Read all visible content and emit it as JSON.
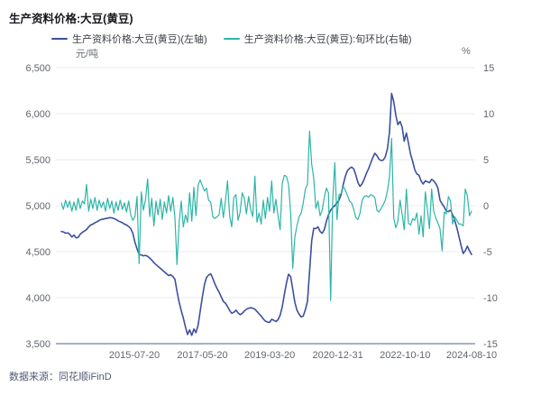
{
  "header": {
    "title": "生产资料价格:大豆(黄豆)"
  },
  "legend": [
    {
      "label": "生产资料价格:大豆(黄豆)(左轴)",
      "color": "#3d4f9d"
    },
    {
      "label": "生产资料价格:大豆(黄豆):旬环比(右轴)",
      "color": "#2db5a6"
    }
  ],
  "footer": {
    "source": "数据来源：同花顺iFinD"
  },
  "chart_data": {
    "type": "line",
    "title": "生产资料价格:大豆(黄豆)",
    "grid": true,
    "legend_position": "top",
    "left_axis": {
      "unit": "元/吨",
      "min": 3500,
      "max": 6500,
      "tick_labels": [
        "6,500",
        "6,000",
        "5,500",
        "5,000",
        "4,500",
        "4,000",
        "3,500"
      ]
    },
    "right_axis": {
      "unit": "%",
      "min": -15,
      "max": 15,
      "tick_labels": [
        "15",
        "10",
        "5",
        "0",
        "-5",
        "-10",
        "-15"
      ]
    },
    "x_axis": {
      "tick_labels": [
        "2015-07-20",
        "2017-05-20",
        "2019-03-20",
        "2020-12-31",
        "2022-10-10",
        "2024-08-10"
      ],
      "tick_pos": [
        0.178,
        0.344,
        0.508,
        0.674,
        0.838,
        1.0
      ]
    },
    "series": [
      {
        "name": "生产资料价格:大豆(黄豆)(左轴)",
        "axis": "left",
        "color": "#3d4f9d",
        "width": 1.6,
        "values": [
          4720,
          4715,
          4700,
          4705,
          4690,
          4660,
          4680,
          4650,
          4655,
          4690,
          4710,
          4725,
          4740,
          4770,
          4790,
          4800,
          4815,
          4825,
          4840,
          4850,
          4855,
          4860,
          4865,
          4870,
          4868,
          4860,
          4850,
          4835,
          4825,
          4815,
          4800,
          4790,
          4775,
          4750,
          4700,
          4600,
          4530,
          4470,
          4465,
          4455,
          4460,
          4450,
          4430,
          4410,
          4380,
          4360,
          4340,
          4320,
          4300,
          4280,
          4260,
          4240,
          4250,
          4230,
          4200,
          4070,
          3950,
          3860,
          3780,
          3680,
          3600,
          3650,
          3590,
          3660,
          3620,
          3700,
          3850,
          4000,
          4140,
          4220,
          4245,
          4260,
          4210,
          4150,
          4100,
          4060,
          4010,
          3960,
          3940,
          3905,
          3860,
          3830,
          3840,
          3865,
          3835,
          3815,
          3830,
          3855,
          3875,
          3885,
          3890,
          3885,
          3875,
          3850,
          3825,
          3800,
          3770,
          3745,
          3735,
          3730,
          3765,
          3755,
          3740,
          3760,
          3810,
          3900,
          4030,
          4160,
          4255,
          4230,
          4090,
          3950,
          3865,
          3820,
          3790,
          3800,
          3870,
          3960,
          4280,
          4620,
          4755,
          4750,
          4770,
          4720,
          4700,
          4740,
          4830,
          4900,
          4950,
          4980,
          5000,
          5030,
          5060,
          5120,
          5230,
          5320,
          5380,
          5405,
          5420,
          5400,
          5330,
          5250,
          5210,
          5240,
          5290,
          5350,
          5400,
          5460,
          5520,
          5570,
          5545,
          5505,
          5490,
          5495,
          5530,
          5620,
          5800,
          6220,
          6130,
          5980,
          5880,
          5915,
          5855,
          5700,
          5790,
          5680,
          5560,
          5480,
          5390,
          5345,
          5330,
          5270,
          5235,
          5270,
          5260,
          5250,
          5285,
          5270,
          5240,
          5190,
          5060,
          5020,
          4985,
          4940,
          4935,
          4950,
          4900,
          4840,
          4760,
          4665,
          4570,
          4480,
          4510,
          4560,
          4510,
          4470
        ]
      },
      {
        "name": "生产资料价格:大豆(黄豆):旬环比(右轴)",
        "axis": "right",
        "color": "#2db5a6",
        "width": 1.2,
        "values": [
          0.3,
          -0.4,
          0.6,
          -0.2,
          0.5,
          -0.6,
          0.4,
          -0.5,
          0.8,
          -0.3,
          0.5,
          0.2,
          2.3,
          -0.6,
          0.7,
          -0.3,
          0.9,
          -0.5,
          0.6,
          -0.2,
          0.4,
          -0.6,
          0.8,
          -0.3,
          0.5,
          -0.8,
          0.4,
          -0.5,
          0.6,
          -0.4,
          0.3,
          -0.7,
          0.5,
          -1.0,
          -1.6,
          -1.2,
          1.0,
          -6.3,
          1.5,
          -0.5,
          0.6,
          2.9,
          -1.2,
          0.8,
          -2.2,
          0.5,
          -1.0,
          0.7,
          -1.5,
          0.4,
          -0.8,
          1.1,
          -0.6,
          0.9,
          -1.3,
          -6.4,
          -1.8,
          0.5,
          -2.3,
          -1.0,
          -1.8,
          1.4,
          -1.7,
          2.0,
          -1.1,
          2.2,
          2.8,
          2.2,
          1.6,
          1.9,
          0.6,
          0.4,
          -1.2,
          -1.4,
          -1.2,
          -1.0,
          0.8,
          -1.3,
          0.5,
          2.7,
          -1.1,
          -2.3,
          0.9,
          1.2,
          -1.6,
          -0.7,
          1.4,
          0.8,
          -0.9,
          1.0,
          -0.4,
          -1.2,
          3.2,
          -1.8,
          -0.8,
          -2.0,
          0.6,
          -1.4,
          0.9,
          -0.6,
          2.7,
          -0.8,
          0.7,
          -1.1,
          -2.6,
          2.4,
          3.3,
          3.2,
          2.3,
          -0.7,
          -6.8,
          -3.4,
          -2.2,
          -1.2,
          -0.8,
          0.3,
          1.8,
          2.3,
          8.1,
          4.5,
          2.9,
          -0.3,
          0.5,
          -1.1,
          -0.5,
          0.9,
          1.9,
          1.4,
          -10.3,
          0.6,
          4.7,
          -1.5,
          1.2,
          1.3,
          2.1,
          1.7,
          1.1,
          0.5,
          0.3,
          -0.4,
          -1.3,
          -1.5,
          -0.8,
          0.6,
          1.0,
          1.1,
          0.9,
          1.2,
          1.1,
          0.9,
          -0.5,
          -0.7,
          -0.3,
          0.1,
          0.6,
          1.6,
          3.2,
          7.3,
          -1.4,
          -2.4,
          -1.7,
          0.6,
          -0.9,
          -2.6,
          1.8,
          -1.9,
          -2.1,
          -1.4,
          -1.6,
          -0.8,
          -3.1,
          -1.1,
          -3.4,
          1.5,
          -0.4,
          -2.5,
          1.8,
          -0.6,
          -1.3,
          -1.9,
          -2.5,
          -4.9,
          -0.7,
          -0.9,
          1.0,
          0.5,
          -2.0,
          -1.2,
          -1.6,
          -2.0,
          -2.0,
          -2.2,
          1.8,
          1.1,
          -1.1,
          -0.6
        ]
      }
    ]
  },
  "style": {
    "grid_color": "#e9ebf3",
    "axis_line_color": "#a9b0c7",
    "tick_text_color": "#61656e"
  }
}
